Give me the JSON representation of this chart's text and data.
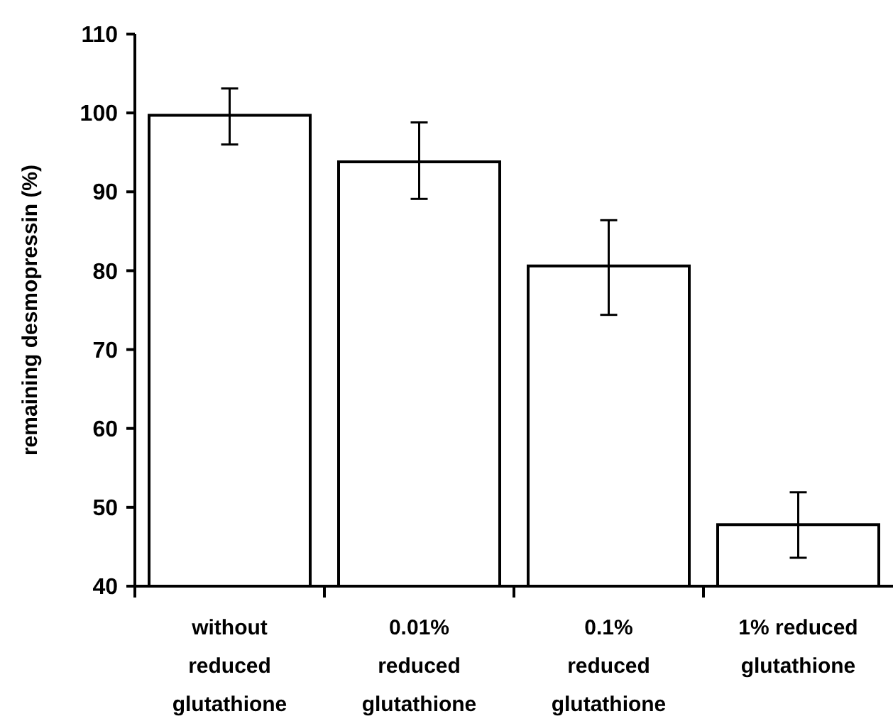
{
  "chart_data": {
    "type": "bar",
    "ylabel": "remaining desmopressin (%)",
    "categories": [
      "without reduced glutathione",
      "0.01% reduced glutathione",
      "0.1% reduced glutathione",
      "1% reduced glutathione"
    ],
    "values": [
      99.7,
      93.8,
      80.6,
      47.8
    ],
    "errors": [
      [
        96.0,
        103.1
      ],
      [
        89.1,
        98.8
      ],
      [
        74.4,
        86.4
      ],
      [
        43.6,
        51.9
      ]
    ],
    "color": "#ffffff",
    "ylim": [
      40,
      110
    ],
    "yticks": [
      40,
      50,
      60,
      70,
      80,
      90,
      100,
      110
    ],
    "grid": false
  }
}
